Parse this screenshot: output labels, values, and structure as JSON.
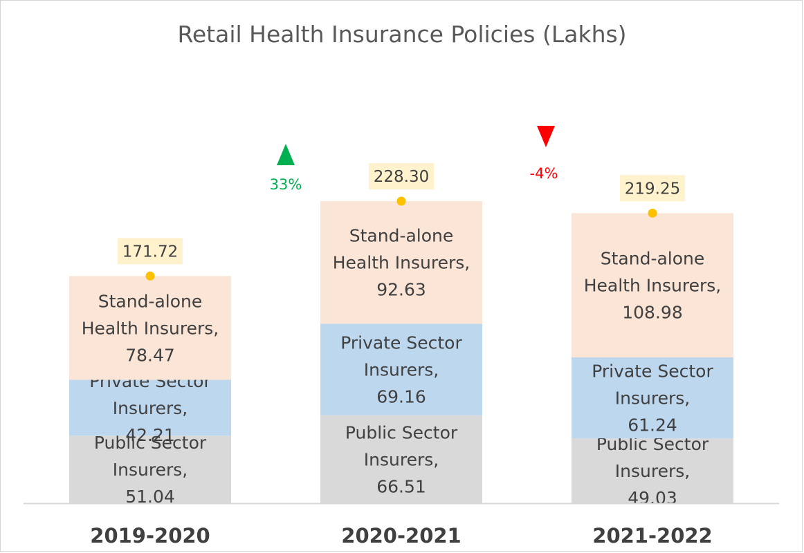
{
  "chart_data": {
    "type": "bar",
    "stacked": true,
    "title": "Retail Health Insurance Policies (Lakhs)",
    "categories": [
      "2019-2020",
      "2020-2021",
      "2021-2022"
    ],
    "series": [
      {
        "name": "Public Sector Insurers",
        "label_lines": [
          "Public Sector",
          "Insurers,"
        ],
        "color": "#d9d9d9",
        "values": [
          51.04,
          66.51,
          49.03
        ]
      },
      {
        "name": "Private Sector Insurers",
        "label_lines": [
          "Private Sector",
          "Insurers,"
        ],
        "color": "#bdd7ee",
        "values": [
          42.21,
          69.16,
          61.24
        ]
      },
      {
        "name": "Stand-alone Health Insurers",
        "label_lines": [
          "Stand-alone",
          "Health Insurers,"
        ],
        "color": "#fbe5d6",
        "values": [
          78.47,
          92.63,
          108.98
        ]
      }
    ],
    "totals": [
      "171.72",
      "228.30",
      "219.25"
    ],
    "total_marker_color": "#ffc000",
    "total_label_bg": "#fff2cc",
    "changes": [
      {
        "between": [
          "2019-2020",
          "2020-2021"
        ],
        "label": "33%",
        "direction": "up",
        "color": "#00b050"
      },
      {
        "between": [
          "2020-2021",
          "2021-2022"
        ],
        "label": "-4%",
        "direction": "down",
        "color": "#ff0000"
      }
    ],
    "ylim": [
      0,
      260
    ],
    "grid": false,
    "legend": "none"
  }
}
